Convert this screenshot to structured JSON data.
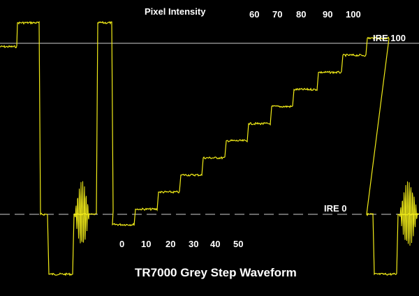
{
  "chart_data": {
    "type": "line",
    "title": "TR7000 Grey Step Waveform",
    "top_label": "Pixel Intensity",
    "reference_lines": [
      {
        "label": "IRE 100",
        "value": 100,
        "style": "solid"
      },
      {
        "label": "IRE 0",
        "value": 0,
        "style": "dashed"
      }
    ],
    "step_labels_low": [
      "0",
      "10",
      "20",
      "30",
      "40",
      "50"
    ],
    "step_labels_high": [
      "60",
      "70",
      "80",
      "90",
      "100"
    ],
    "step_levels_ire": [
      -6,
      3,
      13,
      23,
      33,
      43,
      53,
      63,
      73,
      83,
      93,
      103
    ],
    "sync_level_ire": -35,
    "blanking_level_ire": 0,
    "overshoot_level_ire": 112,
    "grid": false,
    "colors": {
      "trace": "#f2ec18",
      "background": "#000000",
      "reference": "#ffffff",
      "text": "#ffffff"
    }
  }
}
